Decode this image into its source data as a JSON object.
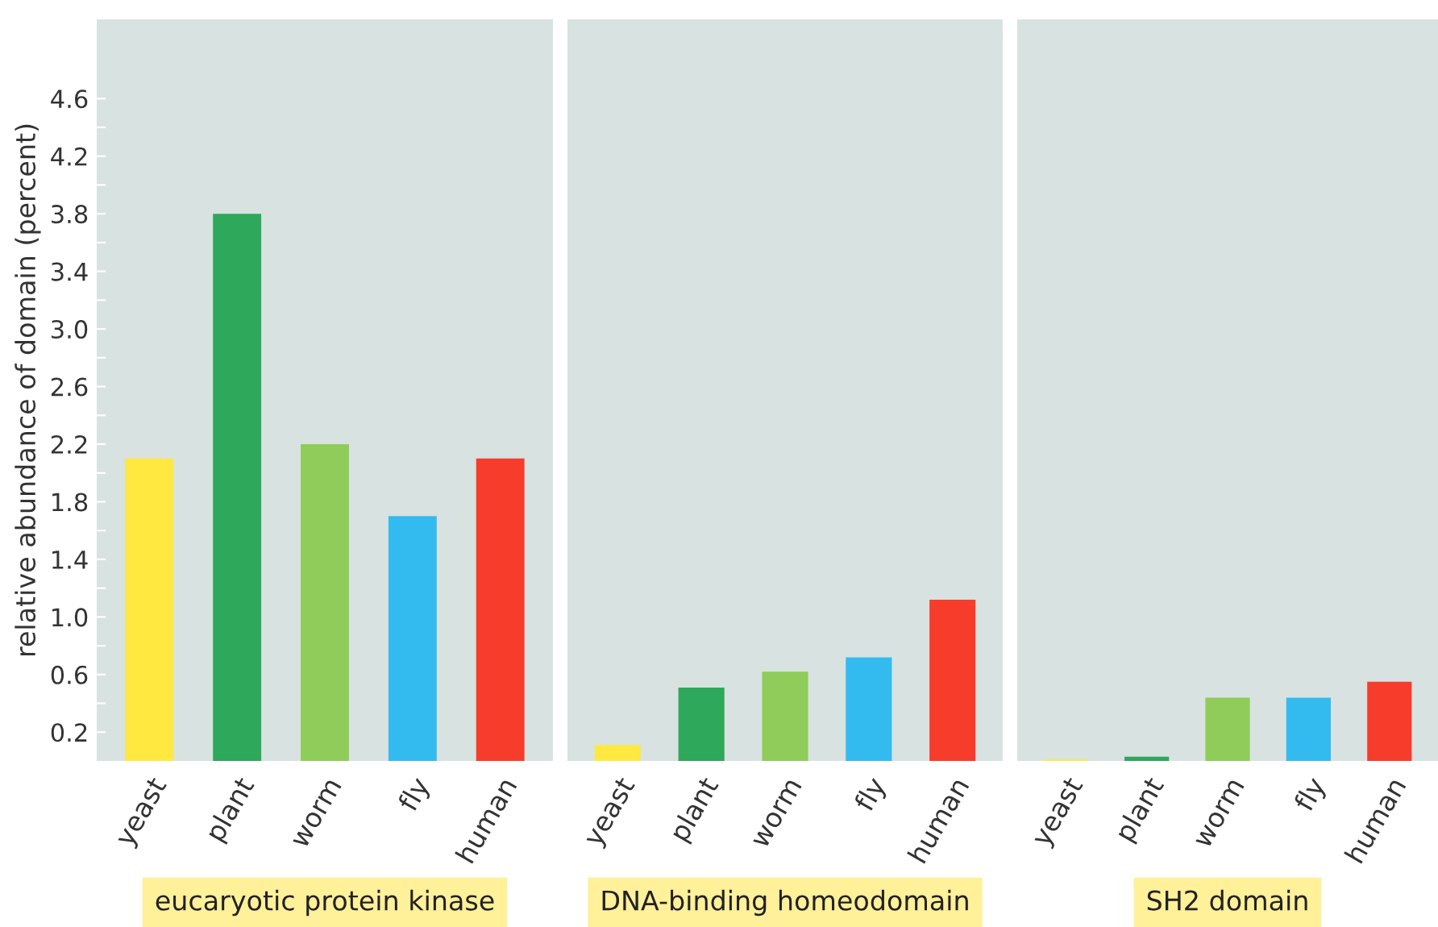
{
  "chart_data": [
    {
      "type": "bar",
      "xlabel": "eucaryotic protein kinase",
      "ylabel": "relative abundance of domain (percent)",
      "categories": [
        "yeast",
        "plant",
        "worm",
        "fly",
        "human"
      ],
      "values": [
        2.1,
        3.8,
        2.2,
        1.7,
        2.1
      ],
      "colors": [
        "#ffe840",
        "#2ea85a",
        "#8fcc5a",
        "#33bbf0",
        "#f83c2c"
      ],
      "ylim": [
        0,
        5.15
      ],
      "yticks": [
        0.2,
        {
          "value": 0.4,
          "label": null
        },
        0.6,
        {
          "value": 0.8,
          "label": null
        },
        {
          "value": 1.0,
          "label": "1.0"
        },
        {
          "value": 1.2,
          "label": null
        },
        1.4,
        {
          "value": 1.6,
          "label": null
        },
        1.8,
        {
          "value": 2.0,
          "label": null
        },
        2.2,
        {
          "value": 2.4,
          "label": null
        },
        2.6,
        {
          "value": 2.8,
          "label": null
        },
        {
          "value": 3.0,
          "label": "3.0"
        },
        {
          "value": 3.2,
          "label": null
        },
        3.4,
        {
          "value": 3.6,
          "label": null
        },
        3.8,
        {
          "value": 4.0,
          "label": null
        },
        4.2,
        {
          "value": 4.4,
          "label": null
        },
        4.6
      ],
      "grid": false
    },
    {
      "type": "bar",
      "xlabel": "DNA-binding homeodomain",
      "categories": [
        "yeast",
        "plant",
        "worm",
        "fly",
        "human"
      ],
      "values": [
        0.11,
        0.51,
        0.62,
        0.72,
        1.12
      ],
      "colors": [
        "#ffe840",
        "#2ea85a",
        "#8fcc5a",
        "#33bbf0",
        "#f83c2c"
      ],
      "ylim": [
        0,
        5.15
      ],
      "tick_labels": "x",
      "grid": false
    },
    {
      "type": "bar",
      "xlabel": "SH2 domain",
      "categories": [
        "yeast",
        "plant",
        "worm",
        "fly",
        "human"
      ],
      "values": [
        0.01,
        0.03,
        0.44,
        0.44,
        0.55
      ],
      "colors": [
        "#ffe840",
        "#2ea85a",
        "#8fcc5a",
        "#33bbf0",
        "#f83c2c"
      ],
      "ylim": [
        0,
        5.15
      ],
      "tick_labels": "x",
      "grid": false
    }
  ]
}
